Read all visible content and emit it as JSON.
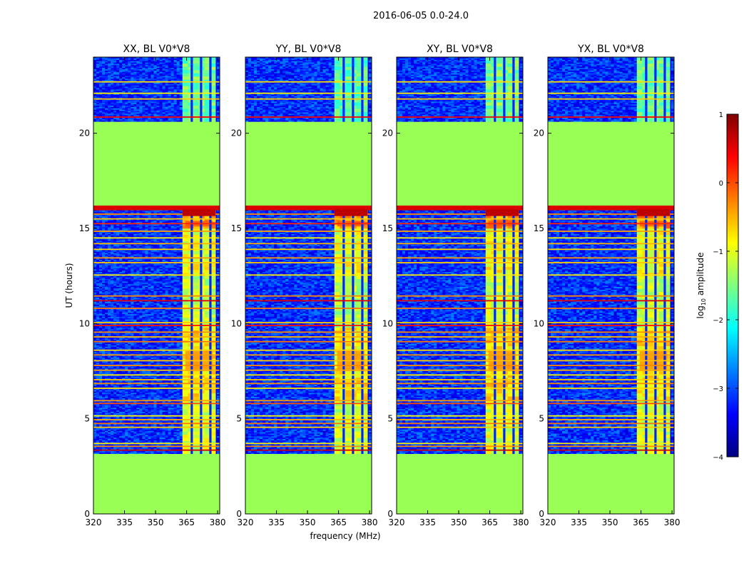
{
  "chart_data": {
    "type": "heatmap",
    "suptitle": "2016-06-05 0.0-24.0",
    "xlabel": "frequency (MHz)",
    "ylabel": "UT (hours)",
    "xlim": [
      320,
      381
    ],
    "ylim": [
      0,
      24
    ],
    "xticks": [
      320,
      335,
      350,
      365,
      380
    ],
    "yticks": [
      0,
      5,
      10,
      15,
      20
    ],
    "panels": [
      {
        "title": "XX, BL V0*V8",
        "band_intensity": 1.0
      },
      {
        "title": "YY, BL V0*V8",
        "band_intensity": 1.05
      },
      {
        "title": "XY, BL V0*V8",
        "band_intensity": 0.95
      },
      {
        "title": "YX, BL V0*V8",
        "band_intensity": 1.0
      }
    ],
    "flagged_ranges_hours": [
      [
        0,
        3.15
      ],
      [
        16.2,
        20.6
      ]
    ],
    "data_ranges_hours": [
      [
        3.15,
        16.2
      ],
      [
        20.6,
        24
      ]
    ],
    "signal_band_mhz": [
      363,
      379
    ],
    "colorbar": {
      "label_prefix": "log",
      "label_sub": "10",
      "label_suffix": " amplitude",
      "min": -4,
      "max": 1,
      "ticks": [
        1,
        0,
        -1,
        -2,
        -3,
        -4
      ],
      "colormap": "jet",
      "colors": [
        "#00007f",
        "#0000ff",
        "#007fff",
        "#00ffff",
        "#7fff7f",
        "#ffff00",
        "#ff7f00",
        "#ff0000",
        "#7f0000"
      ],
      "flag_color": "#99ff55"
    }
  }
}
